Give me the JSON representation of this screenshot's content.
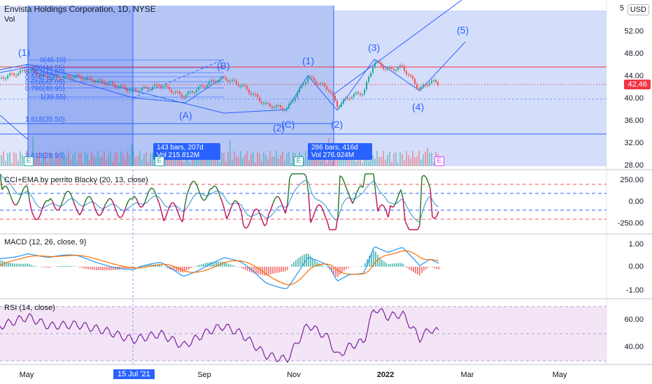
{
  "header": {
    "title": "Envista Holdings Corporation, 1D, NYSE",
    "vol_label": "Vol",
    "currency": "USD"
  },
  "price": {
    "current": "42.46",
    "axis_labels": [
      "5",
      "52.00",
      "48.00",
      "44.00",
      "40.00",
      "36.00",
      "32.00",
      "28.00"
    ]
  },
  "waves": {
    "w1_left": "(1)",
    "w1": "(1)",
    "w2a": "(2)",
    "c": "(C)",
    "w2": "(2)",
    "w3": "(3)",
    "w4": "(4)",
    "w5": "(5)",
    "a": "(A)",
    "b": "(B)"
  },
  "fib_levels": [
    "0(46.10)",
    "0.236(44.55)",
    "0.382(43.59)",
    "0.5(42.82)",
    "0.618(42.05)",
    "0.786(40.95)",
    "1(39.55)",
    "1.618(35.50)",
    "2.618(28.95)"
  ],
  "measure_boxes": [
    {
      "line1": "143 bars, 207d",
      "line2": "Vol 215.812M"
    },
    {
      "line1": "286 bars, 416d",
      "line2": "Vol 276.924M"
    }
  ],
  "earnings_marker": "E",
  "indicators": {
    "cci": {
      "title": "CCI+EMA by perrito Blacky (20, 13, close)",
      "axis": [
        "250.00",
        "0.00",
        "-250.00"
      ]
    },
    "macd": {
      "title": "MACD (12, 26, close, 9)",
      "axis": [
        "1.00",
        "0.00",
        "-1.00"
      ]
    },
    "rsi": {
      "title": "RSI (14, close)",
      "axis": [
        "60.00",
        "40.00"
      ]
    }
  },
  "time_axis": [
    "May",
    "Sep",
    "Nov",
    "2022",
    "Mar",
    "May"
  ],
  "cursor_date": "15 Jul '21",
  "colors": {
    "accent": "#2962ff",
    "up": "#26a69a",
    "down": "#ef5350",
    "resistance": "#f23645"
  }
}
